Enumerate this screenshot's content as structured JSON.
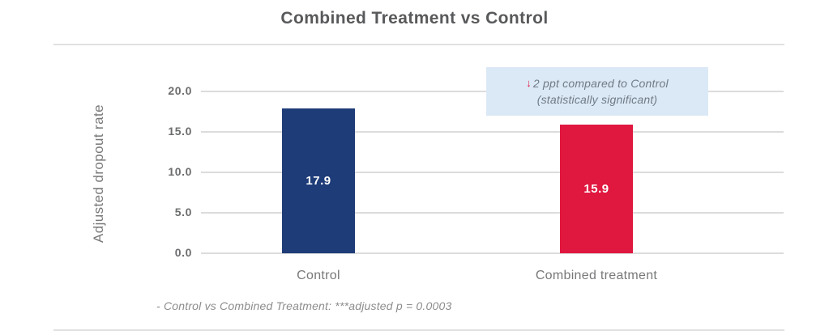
{
  "title": "Combined Treatment vs Control",
  "chart_data": {
    "type": "bar",
    "title": "Combined Treatment vs Control",
    "categories": [
      "Control",
      "Combined treatment"
    ],
    "values": [
      17.9,
      15.9
    ],
    "value_labels": [
      "17.9",
      "15.9"
    ],
    "bar_colors": [
      "#1e3c78",
      "#e0173f"
    ],
    "ylabel": "Adjusted dropout rate",
    "xlabel": "",
    "yticks": [
      "20.0",
      "15.0",
      "10.0",
      "5.0",
      "0.0"
    ],
    "ylim": [
      0,
      20
    ],
    "grid": "horizontal",
    "legend": "none"
  },
  "annotation": {
    "arrow_icon": "↓",
    "arrow_color": "#e0173f",
    "line1": "2 ppt compared to Control",
    "line2": "(statistically significant)",
    "bg_color": "#dbe9f6"
  },
  "footnote": "- Control vs Combined Treatment: ***adjusted p = 0.0003",
  "colors": {
    "control_bar": "#1e3c78",
    "treatment_bar": "#e0173f",
    "gridline": "#dcdcdc",
    "divider": "#e1e1e1",
    "annotation_bg": "#dbe9f6",
    "title_text": "#58595b",
    "axis_text": "#77787a"
  }
}
